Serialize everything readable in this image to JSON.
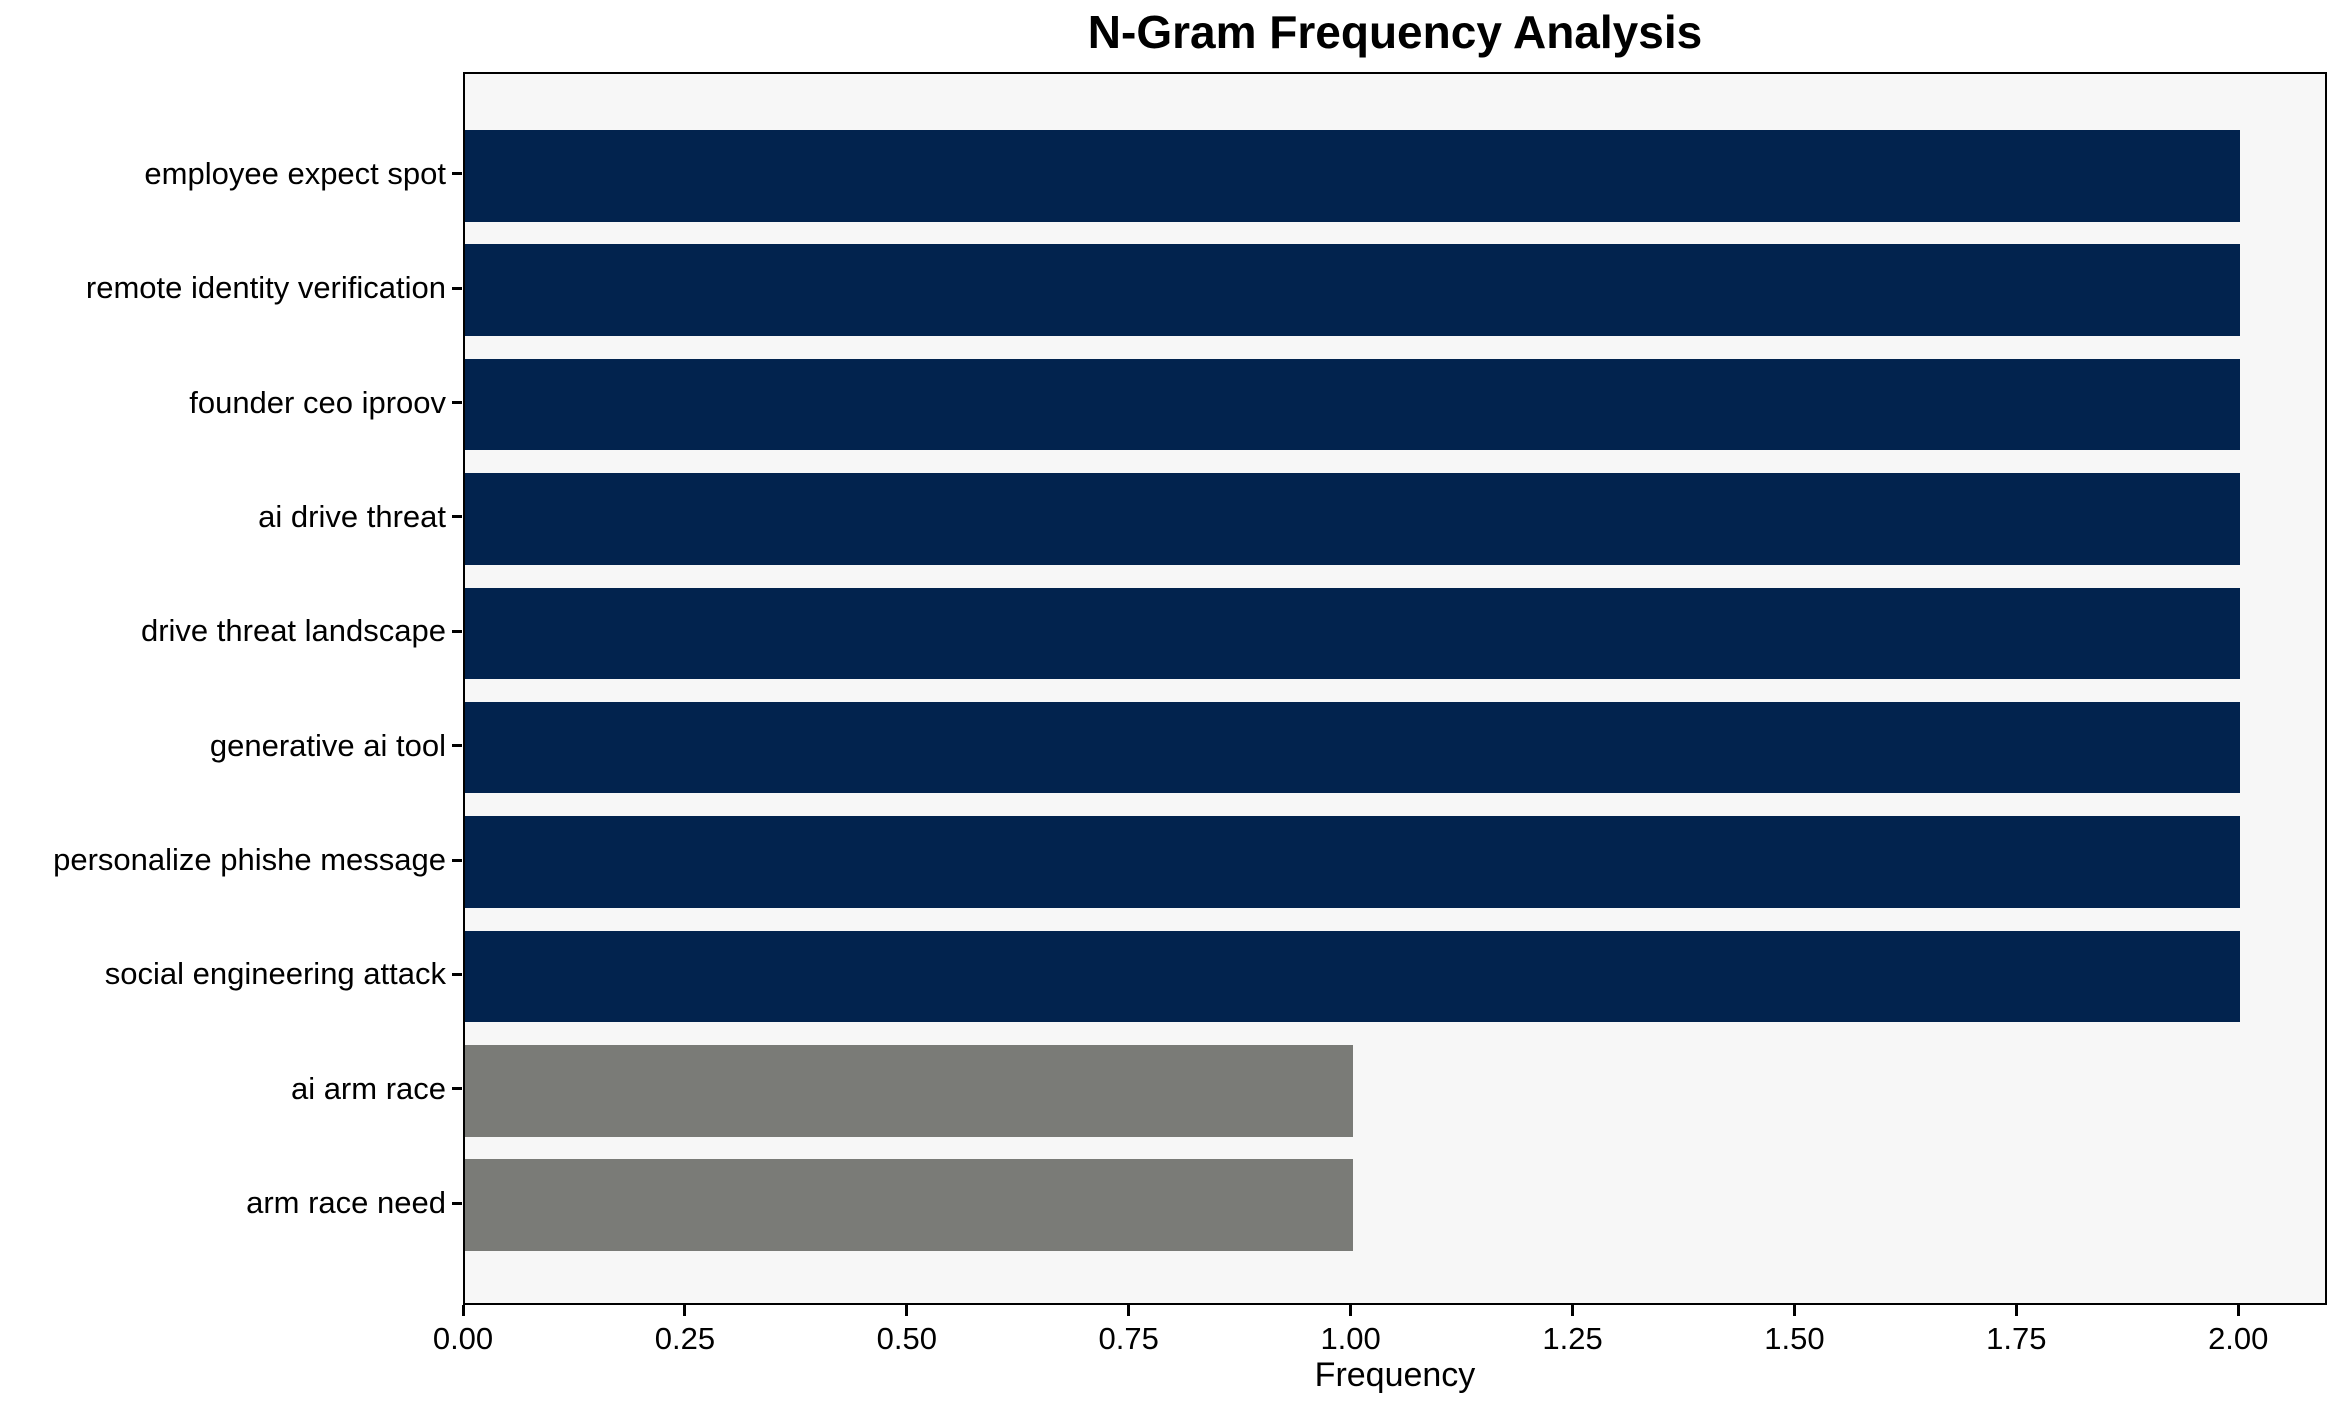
{
  "chart_data": {
    "type": "bar",
    "orientation": "horizontal",
    "title": "N-Gram Frequency Analysis",
    "xlabel": "Frequency",
    "ylabel": "",
    "categories": [
      "employee expect spot",
      "remote identity verification",
      "founder ceo iproov",
      "ai drive threat",
      "drive threat landscape",
      "generative ai tool",
      "personalize phishe message",
      "social engineering attack",
      "ai arm race",
      "arm race need"
    ],
    "values": [
      2,
      2,
      2,
      2,
      2,
      2,
      2,
      2,
      1,
      1
    ],
    "bar_colors": [
      "#02234e",
      "#02234e",
      "#02234e",
      "#02234e",
      "#02234e",
      "#02234e",
      "#02234e",
      "#02234e",
      "#7a7b77",
      "#7a7b77"
    ],
    "xlim": [
      0,
      2.1
    ],
    "xticks": [
      0,
      0.25,
      0.5,
      0.75,
      1,
      1.25,
      1.5,
      1.75,
      2
    ],
    "xtick_labels": [
      "0.00",
      "0.25",
      "0.50",
      "0.75",
      "1.00",
      "1.25",
      "1.50",
      "1.75",
      "2.00"
    ],
    "grid": false,
    "legend": null,
    "bar_relative_height": 0.8,
    "colors": {
      "bar_high": "#02234e",
      "bar_low": "#7a7b77",
      "plot_background": "#f7f7f7",
      "figure_background": "#ffffff",
      "spine": "#000000",
      "text": "#000000"
    }
  }
}
